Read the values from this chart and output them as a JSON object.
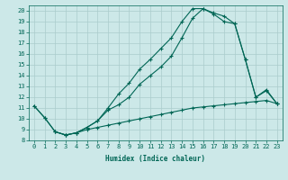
{
  "xlabel": "Humidex (Indice chaleur)",
  "bg_color": "#cce8e8",
  "grid_color": "#aacccc",
  "line_color": "#006655",
  "xlim": [
    -0.5,
    23.5
  ],
  "ylim": [
    8,
    20.5
  ],
  "yticks": [
    8,
    9,
    10,
    11,
    12,
    13,
    14,
    15,
    16,
    17,
    18,
    19,
    20
  ],
  "xticks": [
    0,
    1,
    2,
    3,
    4,
    5,
    6,
    7,
    8,
    9,
    10,
    11,
    12,
    13,
    14,
    15,
    16,
    17,
    18,
    19,
    20,
    21,
    22,
    23
  ],
  "line1_x": [
    0,
    1,
    2,
    3,
    4,
    5,
    6,
    7,
    8,
    9,
    10,
    11,
    12,
    13,
    14,
    15,
    16,
    17,
    18,
    19,
    20,
    21,
    22,
    23
  ],
  "line1_y": [
    11.2,
    10.1,
    8.8,
    8.5,
    8.7,
    9.0,
    9.2,
    9.4,
    9.6,
    9.8,
    10.0,
    10.2,
    10.4,
    10.6,
    10.8,
    11.0,
    11.1,
    11.2,
    11.3,
    11.4,
    11.5,
    11.6,
    11.7,
    11.4
  ],
  "line2_x": [
    0,
    1,
    2,
    3,
    4,
    5,
    6,
    7,
    8,
    9,
    10,
    11,
    12,
    13,
    14,
    15,
    16,
    17,
    18,
    19,
    20,
    21,
    22,
    23
  ],
  "line2_y": [
    11.2,
    10.1,
    8.8,
    8.5,
    8.7,
    9.2,
    9.8,
    11.0,
    12.3,
    13.3,
    14.6,
    15.5,
    16.5,
    17.5,
    19.0,
    20.2,
    20.2,
    19.7,
    19.0,
    18.8,
    15.5,
    12.0,
    12.6,
    11.4
  ],
  "line3_x": [
    2,
    3,
    4,
    5,
    6,
    7,
    8,
    9,
    10,
    11,
    12,
    13,
    14,
    15,
    16,
    17,
    18,
    19,
    20,
    21,
    22,
    23
  ],
  "line3_y": [
    8.8,
    8.5,
    8.7,
    9.2,
    9.8,
    10.8,
    11.3,
    12.0,
    13.2,
    14.0,
    14.8,
    15.8,
    17.5,
    19.3,
    20.2,
    19.8,
    19.5,
    18.8,
    15.5,
    12.0,
    12.7,
    11.4
  ]
}
